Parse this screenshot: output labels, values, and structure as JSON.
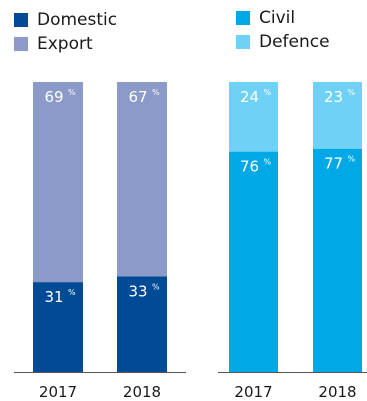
{
  "colors": {
    "domestic": "#004A96",
    "export": "#8B9AC8",
    "civil": "#00A9E6",
    "defence": "#6FD1F6",
    "axis": "#555555",
    "text_light": "#ffffff",
    "text_dark": "#1a1a1a"
  },
  "chart_data": [
    {
      "type": "bar",
      "stacked": true,
      "categories": [
        "2017",
        "2018"
      ],
      "series": [
        {
          "name": "Domestic",
          "values": [
            31,
            33
          ],
          "labels": [
            "31",
            "33"
          ]
        },
        {
          "name": "Export",
          "values": [
            69,
            67
          ],
          "labels": [
            "69",
            "67"
          ]
        }
      ],
      "value_suffix": "%",
      "ylim": [
        0,
        100
      ],
      "legend": "top-left"
    },
    {
      "type": "bar",
      "stacked": true,
      "categories": [
        "2017",
        "2018"
      ],
      "series": [
        {
          "name": "Civil",
          "values": [
            76,
            77
          ],
          "labels": [
            "76",
            "77"
          ]
        },
        {
          "name": "Defence",
          "values": [
            24,
            23
          ],
          "labels": [
            "24",
            "23"
          ]
        }
      ],
      "value_suffix": "%",
      "ylim": [
        0,
        100
      ],
      "legend": "top-left"
    }
  ]
}
